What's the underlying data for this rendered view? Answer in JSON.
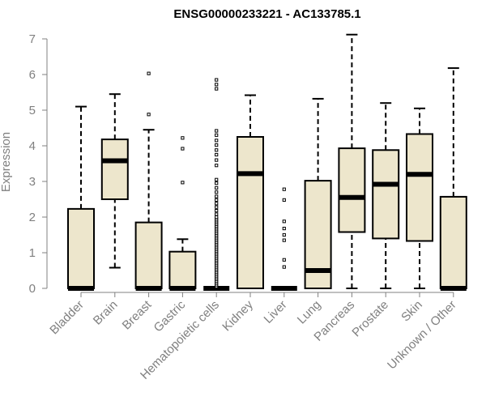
{
  "chart_data": {
    "type": "boxplot",
    "title": "ENSG00000233221 - AC133785.1",
    "xlabel": "",
    "ylabel": "Expression",
    "ylim": [
      0,
      7
    ],
    "yticks": [
      0,
      1,
      2,
      3,
      4,
      5,
      6,
      7
    ],
    "colors": {
      "box_fill": "#ede6cc",
      "stroke": "#000000",
      "axis": "#808080"
    },
    "categories": [
      "Bladder",
      "Brain",
      "Breast",
      "Gastric",
      "Hematopoietic cells",
      "Kidney",
      "Liver",
      "Lung",
      "Pancreas",
      "Prostate",
      "Skin",
      "Unknown / Other"
    ],
    "boxes": [
      {
        "name": "Bladder",
        "whisker_low": 0,
        "q1": 0,
        "median": 0,
        "q3": 2.23,
        "whisker_high": 5.1,
        "outliers": []
      },
      {
        "name": "Brain",
        "whisker_low": 0.58,
        "q1": 2.5,
        "median": 3.58,
        "q3": 4.18,
        "whisker_high": 5.45,
        "outliers": []
      },
      {
        "name": "Breast",
        "whisker_low": 0,
        "q1": 0,
        "median": 0,
        "q3": 1.85,
        "whisker_high": 4.45,
        "outliers": [
          4.88,
          6.03
        ]
      },
      {
        "name": "Gastric",
        "whisker_low": 0,
        "q1": 0,
        "median": 0,
        "q3": 1.03,
        "whisker_high": 1.38,
        "outliers": [
          2.97,
          3.92,
          4.22
        ]
      },
      {
        "name": "Hematopoietic cells",
        "whisker_low": 0,
        "q1": 0,
        "median": 0,
        "q3": 0,
        "whisker_high": 0,
        "outliers": [
          0.05,
          0.1,
          0.15,
          0.2,
          0.25,
          0.3,
          0.35,
          0.4,
          0.45,
          0.5,
          0.55,
          0.6,
          0.65,
          0.7,
          0.75,
          0.8,
          0.85,
          0.9,
          0.95,
          1.0,
          1.05,
          1.1,
          1.15,
          1.2,
          1.25,
          1.3,
          1.35,
          1.4,
          1.45,
          1.5,
          1.55,
          1.6,
          1.65,
          1.7,
          1.75,
          1.8,
          1.85,
          1.9,
          1.95,
          2.0,
          2.08,
          2.18,
          2.28,
          2.38,
          2.48,
          2.58,
          2.7,
          2.82,
          2.95,
          3.05,
          3.45,
          3.6,
          3.75,
          3.88,
          4.02,
          4.15,
          4.3,
          4.42,
          5.6,
          5.72,
          5.85
        ]
      },
      {
        "name": "Kidney",
        "whisker_low": 0,
        "q1": 0,
        "median": 3.22,
        "q3": 4.25,
        "whisker_high": 5.42,
        "outliers": []
      },
      {
        "name": "Liver",
        "whisker_low": 0,
        "q1": 0,
        "median": 0,
        "q3": 0,
        "whisker_high": 0,
        "outliers": [
          0.6,
          0.8,
          1.35,
          1.5,
          1.68,
          1.88,
          2.48,
          2.78
        ]
      },
      {
        "name": "Lung",
        "whisker_low": 0,
        "q1": 0,
        "median": 0.5,
        "q3": 3.02,
        "whisker_high": 5.32,
        "outliers": []
      },
      {
        "name": "Pancreas",
        "whisker_low": 0,
        "q1": 1.58,
        "median": 2.55,
        "q3": 3.93,
        "whisker_high": 7.12,
        "outliers": []
      },
      {
        "name": "Prostate",
        "whisker_low": 0,
        "q1": 1.4,
        "median": 2.92,
        "q3": 3.88,
        "whisker_high": 5.2,
        "outliers": []
      },
      {
        "name": "Skin",
        "whisker_low": 0,
        "q1": 1.33,
        "median": 3.2,
        "q3": 4.33,
        "whisker_high": 5.05,
        "outliers": []
      },
      {
        "name": "Unknown / Other",
        "whisker_low": 0,
        "q1": 0,
        "median": 0,
        "q3": 2.57,
        "whisker_high": 6.18,
        "outliers": []
      }
    ]
  }
}
